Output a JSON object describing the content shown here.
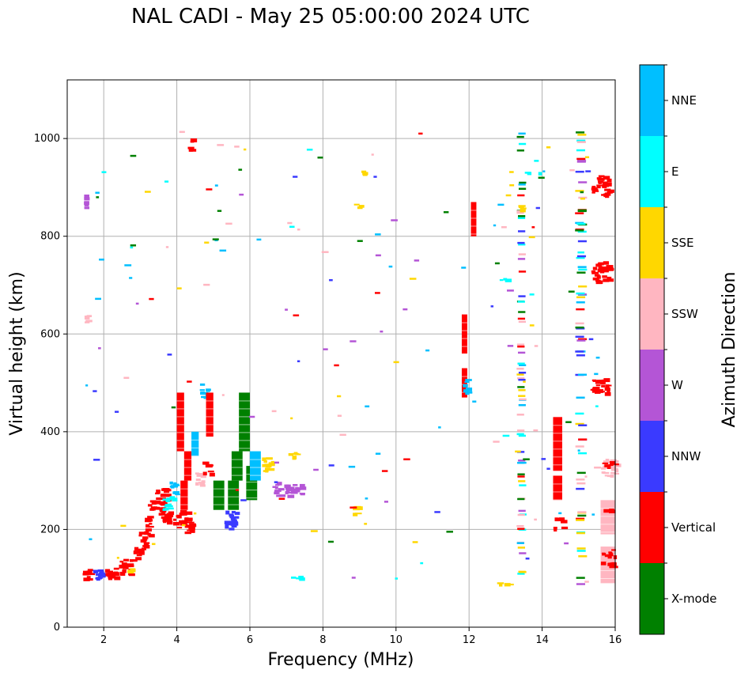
{
  "chart_data": {
    "type": "scatter",
    "title": "NAL CADI - May 25 05:00:00 2024 UTC",
    "xlabel": "Frequency (MHz)",
    "ylabel": "Virtual height (km)",
    "xlim": [
      1,
      16
    ],
    "ylim": [
      0,
      1120
    ],
    "xticks": [
      2,
      4,
      6,
      8,
      10,
      12,
      14,
      16
    ],
    "yticks": [
      0,
      200,
      400,
      600,
      800,
      1000
    ],
    "grid": true,
    "colorbar": {
      "label": "Azimuth Direction",
      "categories": [
        "X-mode",
        "Vertical",
        "NNW",
        "W",
        "SSW",
        "SSE",
        "E",
        "NNE"
      ],
      "colors": [
        "#008000",
        "#ff0000",
        "#3a3aff",
        "#b455d6",
        "#ffb6c1",
        "#ffd700",
        "#00ffff",
        "#00bfff"
      ]
    },
    "segments": [
      {
        "x0": 1.4,
        "x1": 1.6,
        "y0": 95,
        "y1": 125,
        "c": "Vertical"
      },
      {
        "x0": 1.6,
        "x1": 2.0,
        "y0": 100,
        "y1": 120,
        "c": "NNW"
      },
      {
        "x0": 2.0,
        "x1": 2.4,
        "y0": 100,
        "y1": 125,
        "c": "Vertical"
      },
      {
        "x0": 2.4,
        "x1": 2.8,
        "y0": 110,
        "y1": 140,
        "c": "Vertical"
      },
      {
        "x0": 2.6,
        "x1": 2.8,
        "y0": 115,
        "y1": 130,
        "c": "SSE"
      },
      {
        "x0": 2.8,
        "x1": 3.0,
        "y0": 140,
        "y1": 165,
        "c": "Vertical"
      },
      {
        "x0": 2.9,
        "x1": 3.1,
        "y0": 160,
        "y1": 200,
        "c": "Vertical"
      },
      {
        "x0": 3.1,
        "x1": 3.3,
        "y0": 190,
        "y1": 230,
        "c": "Vertical"
      },
      {
        "x0": 3.2,
        "x1": 3.6,
        "y0": 230,
        "y1": 260,
        "c": "Vertical"
      },
      {
        "x0": 3.4,
        "x1": 3.8,
        "y0": 260,
        "y1": 285,
        "c": "Vertical"
      },
      {
        "x0": 3.5,
        "x1": 4.3,
        "y0": 215,
        "y1": 240,
        "c": "Vertical"
      },
      {
        "x0": 4.0,
        "x1": 4.4,
        "y0": 195,
        "y1": 215,
        "c": "Vertical"
      },
      {
        "x0": 4.1,
        "x1": 4.3,
        "y0": 240,
        "y1": 300,
        "c": "Vertical"
      },
      {
        "x0": 4.2,
        "x1": 4.4,
        "y0": 300,
        "y1": 360,
        "c": "Vertical"
      },
      {
        "x0": 4.0,
        "x1": 4.2,
        "y0": 360,
        "y1": 480,
        "c": "Vertical"
      },
      {
        "x0": 3.6,
        "x1": 3.9,
        "y0": 240,
        "y1": 270,
        "c": "E"
      },
      {
        "x0": 3.8,
        "x1": 4.0,
        "y0": 270,
        "y1": 300,
        "c": "NNE"
      },
      {
        "x0": 4.4,
        "x1": 4.6,
        "y0": 350,
        "y1": 400,
        "c": "NNE"
      },
      {
        "x0": 4.6,
        "x1": 4.8,
        "y0": 470,
        "y1": 500,
        "c": "NNE"
      },
      {
        "x0": 4.5,
        "x1": 4.7,
        "y0": 290,
        "y1": 320,
        "c": "SSW"
      },
      {
        "x0": 4.7,
        "x1": 4.9,
        "y0": 315,
        "y1": 340,
        "c": "Vertical"
      },
      {
        "x0": 4.8,
        "x1": 5.0,
        "y0": 390,
        "y1": 480,
        "c": "Vertical"
      },
      {
        "x0": 5.0,
        "x1": 5.3,
        "y0": 240,
        "y1": 300,
        "c": "X-mode"
      },
      {
        "x0": 5.3,
        "x1": 5.6,
        "y0": 200,
        "y1": 240,
        "c": "NNW"
      },
      {
        "x0": 5.4,
        "x1": 5.7,
        "y0": 240,
        "y1": 300,
        "c": "X-mode"
      },
      {
        "x0": 5.5,
        "x1": 5.8,
        "y0": 300,
        "y1": 360,
        "c": "X-mode"
      },
      {
        "x0": 5.7,
        "x1": 6.0,
        "y0": 360,
        "y1": 480,
        "c": "X-mode"
      },
      {
        "x0": 5.9,
        "x1": 6.2,
        "y0": 260,
        "y1": 330,
        "c": "X-mode"
      },
      {
        "x0": 6.0,
        "x1": 6.3,
        "y0": 300,
        "y1": 360,
        "c": "NNE"
      },
      {
        "x0": 6.3,
        "x1": 6.6,
        "y0": 320,
        "y1": 350,
        "c": "SSE"
      },
      {
        "x0": 6.6,
        "x1": 6.8,
        "y0": 270,
        "y1": 300,
        "c": "W"
      },
      {
        "x0": 6.9,
        "x1": 7.4,
        "y0": 270,
        "y1": 295,
        "c": "W"
      },
      {
        "x0": 7.0,
        "x1": 7.3,
        "y0": 345,
        "y1": 360,
        "c": "SSE"
      },
      {
        "x0": 11.8,
        "x1": 11.95,
        "y0": 560,
        "y1": 640,
        "c": "Vertical"
      },
      {
        "x0": 11.8,
        "x1": 11.95,
        "y0": 470,
        "y1": 530,
        "c": "Vertical"
      },
      {
        "x0": 11.8,
        "x1": 11.95,
        "y0": 480,
        "y1": 510,
        "c": "NNE"
      },
      {
        "x0": 12.05,
        "x1": 12.2,
        "y0": 800,
        "y1": 870,
        "c": "Vertical"
      },
      {
        "x0": 14.3,
        "x1": 14.55,
        "y0": 320,
        "y1": 430,
        "c": "Vertical"
      },
      {
        "x0": 14.3,
        "x1": 14.55,
        "y0": 260,
        "y1": 310,
        "c": "Vertical"
      },
      {
        "x0": 14.3,
        "x1": 14.55,
        "y0": 200,
        "y1": 225,
        "c": "Vertical"
      },
      {
        "x0": 15.3,
        "x1": 15.8,
        "y0": 885,
        "y1": 925,
        "c": "Vertical"
      },
      {
        "x0": 15.3,
        "x1": 15.8,
        "y0": 705,
        "y1": 750,
        "c": "Vertical"
      },
      {
        "x0": 15.3,
        "x1": 15.8,
        "y0": 480,
        "y1": 510,
        "c": "Vertical"
      },
      {
        "x0": 15.6,
        "x1": 16.0,
        "y0": 310,
        "y1": 345,
        "c": "SSW"
      },
      {
        "x0": 15.6,
        "x1": 16.0,
        "y0": 330,
        "y1": 340,
        "c": "Vertical"
      },
      {
        "x0": 15.6,
        "x1": 16.0,
        "y0": 190,
        "y1": 260,
        "c": "SSW"
      },
      {
        "x0": 15.6,
        "x1": 16.0,
        "y0": 90,
        "y1": 165,
        "c": "SSW"
      },
      {
        "x0": 15.6,
        "x1": 16.0,
        "y0": 145,
        "y1": 160,
        "c": "Vertical"
      },
      {
        "x0": 15.6,
        "x1": 16.0,
        "y0": 125,
        "y1": 135,
        "c": "Vertical"
      },
      {
        "x0": 15.6,
        "x1": 16.0,
        "y0": 240,
        "y1": 245,
        "c": "Vertical"
      },
      {
        "x0": 13.3,
        "x1": 13.55,
        "y0": 90,
        "y1": 1015,
        "c": "dots"
      },
      {
        "x0": 14.9,
        "x1": 15.2,
        "y0": 90,
        "y1": 1015,
        "c": "dots"
      },
      {
        "x0": 12.5,
        "x1": 13.2,
        "y0": 88,
        "y1": 92,
        "c": "SSE"
      },
      {
        "x0": 13.5,
        "x1": 13.9,
        "y0": 928,
        "y1": 932,
        "c": "E"
      },
      {
        "x0": 13.2,
        "x1": 13.4,
        "y0": 855,
        "y1": 862,
        "c": "SSE"
      },
      {
        "x0": 12.8,
        "x1": 13.1,
        "y0": 712,
        "y1": 716,
        "c": "E"
      },
      {
        "x0": 8.9,
        "x1": 9.1,
        "y0": 930,
        "y1": 935,
        "c": "SSE"
      },
      {
        "x0": 8.8,
        "x1": 9.0,
        "y0": 860,
        "y1": 870,
        "c": "SSE"
      },
      {
        "x0": 8.8,
        "x1": 9.0,
        "y0": 230,
        "y1": 250,
        "c": "SSE"
      },
      {
        "x0": 4.3,
        "x1": 4.4,
        "y0": 975,
        "y1": 1005,
        "c": "Vertical"
      },
      {
        "x0": 7.1,
        "x1": 7.4,
        "y0": 100,
        "y1": 108,
        "c": "E"
      },
      {
        "x0": 1.45,
        "x1": 1.55,
        "y0": 860,
        "y1": 900,
        "c": "W"
      },
      {
        "x0": 1.45,
        "x1": 1.55,
        "y0": 625,
        "y1": 650,
        "c": "SSW"
      }
    ]
  }
}
